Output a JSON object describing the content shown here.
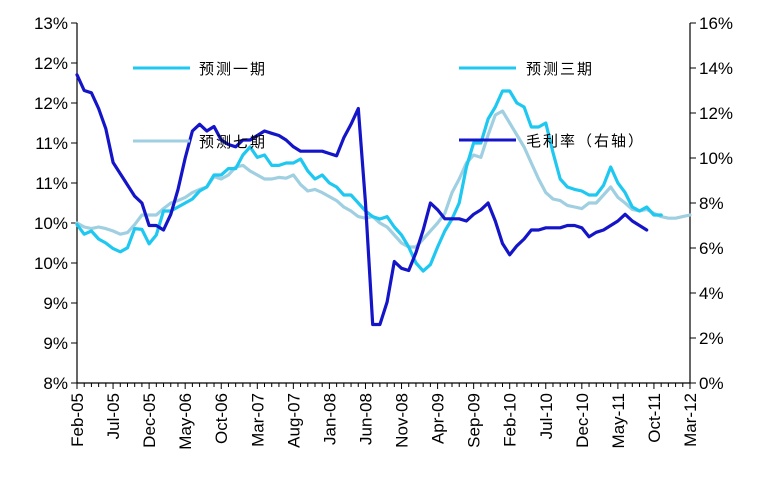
{
  "chart_data": {
    "type": "line",
    "title": "",
    "xlabel": "",
    "ylabel_left": "",
    "ylabel_right": "",
    "x_tick_labels": [
      "Feb-05",
      "Jul-05",
      "Dec-05",
      "May-06",
      "Oct-06",
      "Mar-07",
      "Aug-07",
      "Jan-08",
      "Jun-08",
      "Nov-08",
      "Apr-09",
      "Sep-09",
      "Feb-10",
      "Jul-10",
      "Dec-10",
      "May-11",
      "Oct-11",
      "Mar-12"
    ],
    "x_range_months": [
      0,
      85
    ],
    "x_tick_step_months": 5,
    "y_left_ticks": [
      "8%",
      "9%",
      "9%",
      "10%",
      "10%",
      "11%",
      "11%",
      "12%",
      "12%",
      "13%"
    ],
    "y_left_range": [
      8.0,
      12.5
    ],
    "y_right_ticks": [
      "0%",
      "2%",
      "4%",
      "6%",
      "8%",
      "10%",
      "12%",
      "14%",
      "16%"
    ],
    "y_right_range": [
      0,
      16
    ],
    "legend": [
      {
        "name": "预测一期",
        "color": "#1ec8f0"
      },
      {
        "name": "预测三期",
        "color": "#1ec8f0"
      },
      {
        "name": "预测七期",
        "color": "#9fcfe0"
      },
      {
        "name": "毛利率（右轴）",
        "color": "#1414c8"
      }
    ],
    "series": [
      {
        "name": "预测一期",
        "axis": "left",
        "color": "#1ec8f0",
        "x": [
          0,
          1,
          2,
          3,
          4,
          5,
          6,
          7,
          8,
          9,
          10,
          11,
          12,
          13,
          14,
          15,
          16,
          17,
          18,
          19,
          20,
          21,
          22,
          23,
          24,
          25,
          26,
          27,
          28,
          29,
          30,
          31,
          32,
          33,
          34,
          35,
          36,
          37,
          38,
          39,
          40,
          41,
          42,
          43,
          44,
          45,
          46,
          47,
          48,
          49,
          50,
          51,
          52,
          53,
          54,
          55,
          56,
          57,
          58,
          59,
          60,
          61,
          62,
          63,
          64,
          65,
          66,
          67,
          68,
          69,
          70,
          71,
          72,
          73,
          74,
          75,
          76,
          77,
          78,
          79,
          80,
          81
        ],
        "values": [
          9.98,
          9.86,
          9.9,
          9.8,
          9.75,
          9.68,
          9.64,
          9.69,
          9.93,
          9.92,
          9.74,
          9.85,
          10.15,
          10.15,
          10.2,
          10.25,
          10.3,
          10.4,
          10.45,
          10.6,
          10.6,
          10.68,
          10.68,
          10.85,
          10.95,
          10.82,
          10.85,
          10.72,
          10.72,
          10.75,
          10.75,
          10.8,
          10.65,
          10.55,
          10.6,
          10.5,
          10.45,
          10.35,
          10.35,
          10.25,
          10.15,
          10.08,
          10.05,
          10.08,
          9.95,
          9.85,
          9.7,
          9.5,
          9.4,
          9.48,
          9.7,
          9.9,
          10.05,
          10.25,
          10.7,
          11.0,
          11.0,
          11.3,
          11.45,
          11.65,
          11.65,
          11.5,
          11.45,
          11.2,
          11.2,
          11.25,
          10.88,
          10.55,
          10.45,
          10.42,
          10.4,
          10.35,
          10.35,
          10.47,
          10.7,
          10.5,
          10.38,
          10.2,
          10.15,
          10.2,
          10.1,
          10.1
        ]
      },
      {
        "name": "预测七期",
        "axis": "left",
        "color": "#9fcfe0",
        "x": [
          0,
          1,
          2,
          3,
          4,
          5,
          6,
          7,
          8,
          9,
          10,
          11,
          12,
          13,
          14,
          15,
          16,
          17,
          18,
          19,
          20,
          21,
          22,
          23,
          24,
          25,
          26,
          27,
          28,
          29,
          30,
          31,
          32,
          33,
          34,
          35,
          36,
          37,
          38,
          39,
          40,
          41,
          42,
          43,
          44,
          45,
          46,
          47,
          48,
          49,
          50,
          51,
          52,
          53,
          54,
          55,
          56,
          57,
          58,
          59,
          60,
          61,
          62,
          63,
          64,
          65,
          66,
          67,
          68,
          69,
          70,
          71,
          72,
          73,
          74,
          75,
          76,
          77,
          78,
          79,
          80,
          81,
          82,
          83,
          84,
          85
        ],
        "values": [
          10.0,
          9.95,
          9.93,
          9.95,
          9.93,
          9.9,
          9.86,
          9.88,
          9.98,
          10.1,
          10.1,
          10.1,
          10.18,
          10.25,
          10.28,
          10.32,
          10.38,
          10.42,
          10.45,
          10.58,
          10.55,
          10.6,
          10.7,
          10.72,
          10.65,
          10.6,
          10.55,
          10.55,
          10.57,
          10.56,
          10.6,
          10.48,
          10.4,
          10.42,
          10.38,
          10.33,
          10.28,
          10.2,
          10.15,
          10.08,
          10.06,
          10.08,
          10.0,
          9.95,
          9.85,
          9.75,
          9.7,
          9.7,
          9.8,
          9.9,
          10.0,
          10.12,
          10.38,
          10.55,
          10.75,
          10.85,
          10.82,
          11.1,
          11.35,
          11.4,
          11.25,
          11.1,
          10.95,
          10.75,
          10.55,
          10.38,
          10.3,
          10.28,
          10.22,
          10.2,
          10.18,
          10.25,
          10.25,
          10.35,
          10.45,
          10.32,
          10.25,
          10.17,
          10.15,
          10.17,
          10.12,
          10.08,
          10.06,
          10.06,
          10.08,
          10.1
        ]
      },
      {
        "name": "毛利率（右轴）",
        "axis": "right",
        "color": "#1414c8",
        "x": [
          0,
          1,
          2,
          3,
          4,
          5,
          6,
          7,
          8,
          9,
          10,
          11,
          12,
          13,
          14,
          15,
          16,
          17,
          18,
          19,
          20,
          21,
          22,
          23,
          24,
          25,
          26,
          27,
          28,
          29,
          30,
          31,
          32,
          33,
          34,
          35,
          36,
          37,
          38,
          39,
          40,
          41,
          42,
          43,
          44,
          45,
          46,
          47,
          48,
          49,
          50,
          51,
          52,
          53,
          54,
          55,
          56,
          57,
          58,
          59,
          60,
          61,
          62,
          63,
          64,
          65,
          66,
          67,
          68,
          69,
          70,
          71,
          72,
          73,
          74,
          75,
          76,
          77,
          78,
          79
        ],
        "values": [
          13.7,
          13.0,
          12.9,
          12.2,
          11.3,
          9.8,
          9.3,
          8.8,
          8.3,
          8.0,
          7.0,
          7.0,
          6.8,
          7.5,
          8.6,
          10.0,
          11.2,
          11.5,
          11.2,
          11.4,
          10.8,
          10.6,
          10.5,
          10.8,
          10.8,
          11.0,
          11.2,
          11.1,
          11.0,
          10.8,
          10.5,
          10.3,
          10.3,
          10.3,
          10.3,
          10.2,
          10.1,
          10.9,
          11.5,
          12.2,
          8.0,
          2.6,
          2.6,
          3.6,
          5.4,
          5.1,
          5.0,
          5.8,
          6.8,
          8.0,
          7.7,
          7.3,
          7.3,
          7.3,
          7.2,
          7.5,
          7.7,
          8.0,
          7.2,
          6.2,
          5.7,
          6.1,
          6.4,
          6.8,
          6.8,
          6.9,
          6.9,
          6.9,
          7.0,
          7.0,
          6.9,
          6.5,
          6.7,
          6.8,
          7.0,
          7.2,
          7.5,
          7.2,
          7.0,
          6.8
        ]
      }
    ]
  }
}
